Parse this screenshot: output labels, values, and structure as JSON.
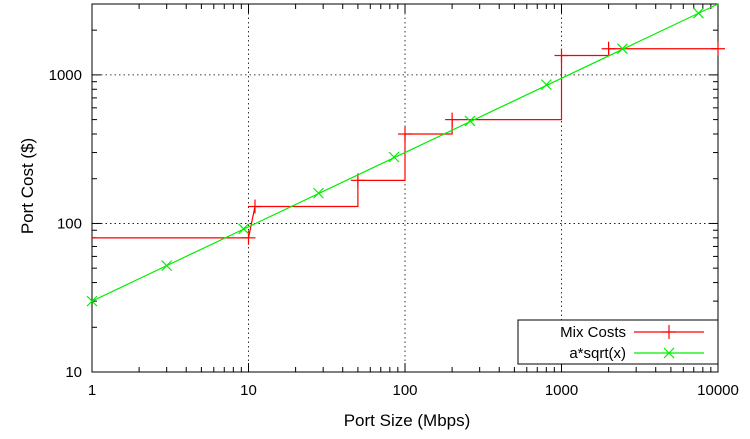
{
  "chart_data": {
    "type": "line",
    "title": "",
    "xlabel": "Port Size (Mbps)",
    "ylabel": "Port Cost ($)",
    "xscale": "log",
    "yscale": "log",
    "xlim": [
      1,
      10000
    ],
    "ylim": [
      10,
      3000
    ],
    "grid": true,
    "legend_position": "bottom-right",
    "x_ticks": [
      {
        "value": 1,
        "label": "1"
      },
      {
        "value": 10,
        "label": "10"
      },
      {
        "value": 100,
        "label": "100"
      },
      {
        "value": 1000,
        "label": "1000"
      },
      {
        "value": 10000,
        "label": "10000"
      }
    ],
    "y_ticks": [
      {
        "value": 10,
        "label": "10"
      },
      {
        "value": 100,
        "label": "100"
      },
      {
        "value": 1000,
        "label": "1000"
      }
    ],
    "series": [
      {
        "name": "Mix Costs",
        "color": "#ff0000",
        "marker": "plus",
        "style": "steps",
        "points": [
          {
            "x": 10,
            "y": 80
          },
          {
            "x": 11,
            "y": 130
          },
          {
            "x": 50,
            "y": 195
          },
          {
            "x": 100,
            "y": 400
          },
          {
            "x": 200,
            "y": 500
          },
          {
            "x": 1000,
            "y": 1350
          },
          {
            "x": 2000,
            "y": 1500
          },
          {
            "x": 10000,
            "y": 1500
          }
        ],
        "step_path": [
          [
            1,
            80
          ],
          [
            10,
            80
          ],
          [
            10,
            80
          ],
          [
            11,
            130
          ],
          [
            50,
            130
          ],
          [
            50,
            195
          ],
          [
            100,
            195
          ],
          [
            100,
            400
          ],
          [
            200,
            400
          ],
          [
            200,
            500
          ],
          [
            1000,
            500
          ],
          [
            1000,
            1350
          ],
          [
            2000,
            1350
          ],
          [
            2000,
            1500
          ],
          [
            10000,
            1500
          ]
        ]
      },
      {
        "name": "a*sqrt(x)",
        "color": "#00ee00",
        "marker": "cross",
        "style": "line",
        "points": [
          {
            "x": 1,
            "y": 30
          },
          {
            "x": 3,
            "y": 52
          },
          {
            "x": 9.3,
            "y": 92
          },
          {
            "x": 28,
            "y": 160
          },
          {
            "x": 85,
            "y": 280
          },
          {
            "x": 260,
            "y": 490
          },
          {
            "x": 800,
            "y": 860
          },
          {
            "x": 2450,
            "y": 1500
          },
          {
            "x": 7500,
            "y": 2600
          }
        ],
        "line_path": [
          [
            1,
            30
          ],
          [
            10000,
            3000
          ]
        ]
      }
    ]
  }
}
